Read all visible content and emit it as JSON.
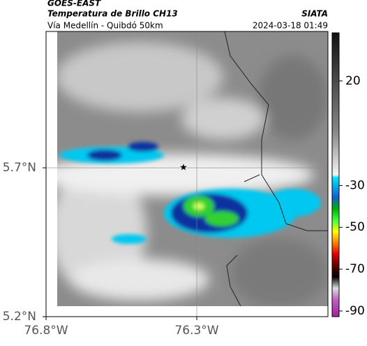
{
  "header": {
    "satellite": "GOES-EAST",
    "product": "Temperatura de Brillo CH13",
    "region": "Vía Medellín - Quibdó 50km",
    "agency": "SIATA",
    "timestamp": "2024-03-18 01:49"
  },
  "map": {
    "xlim": [
      -76.8,
      -75.865
    ],
    "ylim": [
      5.2,
      6.158
    ],
    "xticks": [
      {
        "value": -76.8,
        "label": "76.8°W"
      },
      {
        "value": -76.3,
        "label": "76.3°W"
      }
    ],
    "yticks": [
      {
        "value": 5.2,
        "label": "5.2°N"
      },
      {
        "value": 5.7,
        "label": "5.7°N"
      }
    ]
  },
  "colorbar": {
    "lim": [
      -92.7,
      43
    ],
    "ticks": [
      20,
      -30,
      -50,
      -70,
      -90
    ]
  }
}
